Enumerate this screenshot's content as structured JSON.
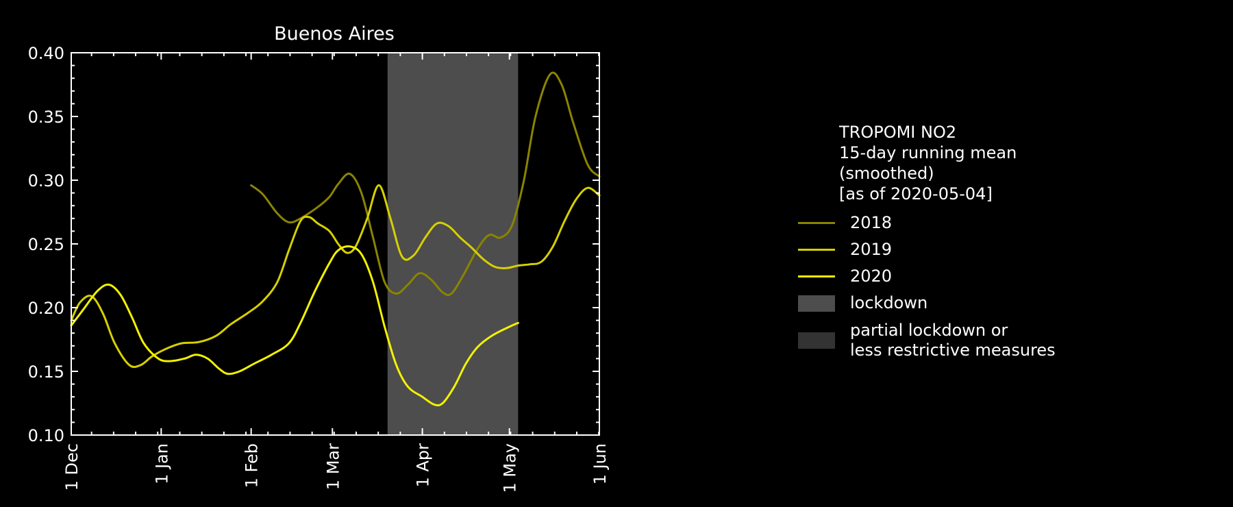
{
  "chart_data": {
    "type": "line",
    "title": "Buenos Aires",
    "xlabel": "",
    "ylabel": "",
    "ylim": [
      0.1,
      0.4
    ],
    "xlim": [
      "1 Dec",
      "1 Jun"
    ],
    "x_ticks": [
      "1 Dec",
      "1 Jan",
      "1 Feb",
      "1 Mar",
      "1 Apr",
      "1 May",
      "1 Jun"
    ],
    "y_ticks": [
      "0.10",
      "0.15",
      "0.20",
      "0.25",
      "0.30",
      "0.35",
      "0.40"
    ],
    "grid": false,
    "legend_position": "right",
    "legend_title": [
      "TROPOMI NO2",
      "15-day running mean",
      "(smoothed)",
      "[as of 2020-05-04]"
    ],
    "series": [
      {
        "name": "2018",
        "color": "#8a8400",
        "width": 3,
        "points": [
          [
            "1 Feb",
            0.296
          ],
          [
            "5 Feb",
            0.289
          ],
          [
            "10 Feb",
            0.274
          ],
          [
            "14 Feb",
            0.267
          ],
          [
            "18 Feb",
            0.27
          ],
          [
            "24 Feb",
            0.279
          ],
          [
            "28 Feb",
            0.287
          ],
          [
            "3 Mar",
            0.297
          ],
          [
            "7 Mar",
            0.305
          ],
          [
            "11 Mar",
            0.29
          ],
          [
            "15 Mar",
            0.255
          ],
          [
            "19 Mar",
            0.22
          ],
          [
            "23 Mar",
            0.211
          ],
          [
            "27 Mar",
            0.218
          ],
          [
            "31 Mar",
            0.227
          ],
          [
            "4 Apr",
            0.222
          ],
          [
            "8 Apr",
            0.212
          ],
          [
            "11 Apr",
            0.211
          ],
          [
            "15 Apr",
            0.225
          ],
          [
            "20 Apr",
            0.246
          ],
          [
            "24 Apr",
            0.257
          ],
          [
            "28 Apr",
            0.255
          ],
          [
            "2 May",
            0.265
          ],
          [
            "6 May",
            0.3
          ],
          [
            "10 May",
            0.35
          ],
          [
            "15 May",
            0.383
          ],
          [
            "19 May",
            0.375
          ],
          [
            "23 May",
            0.345
          ],
          [
            "28 May",
            0.312
          ],
          [
            "1 Jun",
            0.303
          ]
        ]
      },
      {
        "name": "2019",
        "color": "#d6d000",
        "width": 3,
        "points": [
          [
            "1 Dec",
            0.19
          ],
          [
            "4 Dec",
            0.204
          ],
          [
            "8 Dec",
            0.209
          ],
          [
            "12 Dec",
            0.195
          ],
          [
            "16 Dec",
            0.172
          ],
          [
            "21 Dec",
            0.155
          ],
          [
            "25 Dec",
            0.155
          ],
          [
            "29 Dec",
            0.162
          ],
          [
            "3 Jan",
            0.168
          ],
          [
            "8 Jan",
            0.172
          ],
          [
            "14 Jan",
            0.173
          ],
          [
            "20 Jan",
            0.178
          ],
          [
            "25 Jan",
            0.187
          ],
          [
            "31 Jan",
            0.196
          ],
          [
            "5 Feb",
            0.205
          ],
          [
            "10 Feb",
            0.22
          ],
          [
            "14 Feb",
            0.245
          ],
          [
            "18 Feb",
            0.268
          ],
          [
            "21 Feb",
            0.271
          ],
          [
            "24 Feb",
            0.266
          ],
          [
            "28 Feb",
            0.26
          ],
          [
            "3 Mar",
            0.25
          ],
          [
            "6 Mar",
            0.243
          ],
          [
            "9 Mar",
            0.248
          ],
          [
            "13 Mar",
            0.27
          ],
          [
            "17 Mar",
            0.296
          ],
          [
            "21 Mar",
            0.27
          ],
          [
            "25 Mar",
            0.24
          ],
          [
            "29 Mar",
            0.241
          ],
          [
            "2 Apr",
            0.255
          ],
          [
            "6 Apr",
            0.266
          ],
          [
            "10 Apr",
            0.264
          ],
          [
            "14 Apr",
            0.255
          ],
          [
            "18 Apr",
            0.247
          ],
          [
            "22 Apr",
            0.238
          ],
          [
            "26 Apr",
            0.232
          ],
          [
            "30 Apr",
            0.231
          ],
          [
            "4 May",
            0.233
          ],
          [
            "8 May",
            0.234
          ],
          [
            "12 May",
            0.236
          ],
          [
            "16 May",
            0.248
          ],
          [
            "20 May",
            0.268
          ],
          [
            "24 May",
            0.285
          ],
          [
            "28 May",
            0.294
          ],
          [
            "1 Jun",
            0.288
          ]
        ]
      },
      {
        "name": "2020",
        "color": "#f2f200",
        "width": 3,
        "points": [
          [
            "1 Dec",
            0.186
          ],
          [
            "5 Dec",
            0.198
          ],
          [
            "10 Dec",
            0.213
          ],
          [
            "14 Dec",
            0.218
          ],
          [
            "18 Dec",
            0.21
          ],
          [
            "22 Dec",
            0.192
          ],
          [
            "26 Dec",
            0.172
          ],
          [
            "31 Dec",
            0.16
          ],
          [
            "4 Jan",
            0.158
          ],
          [
            "9 Jan",
            0.16
          ],
          [
            "13 Jan",
            0.163
          ],
          [
            "17 Jan",
            0.16
          ],
          [
            "21 Jan",
            0.152
          ],
          [
            "24 Jan",
            0.148
          ],
          [
            "28 Jan",
            0.15
          ],
          [
            "2 Feb",
            0.156
          ],
          [
            "8 Feb",
            0.163
          ],
          [
            "14 Feb",
            0.172
          ],
          [
            "18 Feb",
            0.188
          ],
          [
            "23 Feb",
            0.213
          ],
          [
            "28 Feb",
            0.235
          ],
          [
            "3 Mar",
            0.245
          ],
          [
            "7 Mar",
            0.248
          ],
          [
            "11 Mar",
            0.242
          ],
          [
            "15 Mar",
            0.22
          ],
          [
            "19 Mar",
            0.185
          ],
          [
            "23 Mar",
            0.155
          ],
          [
            "27 Mar",
            0.138
          ],
          [
            "1 Apr",
            0.13
          ],
          [
            "5 Apr",
            0.124
          ],
          [
            "8 Apr",
            0.125
          ],
          [
            "12 Apr",
            0.138
          ],
          [
            "16 Apr",
            0.156
          ],
          [
            "20 Apr",
            0.169
          ],
          [
            "25 Apr",
            0.178
          ],
          [
            "1 May",
            0.185
          ],
          [
            "4 May",
            0.188
          ]
        ]
      }
    ],
    "shaded_regions": [
      {
        "name": "lockdown",
        "color": "#4d4d4d",
        "start": "20 Mar",
        "end": "4 May"
      }
    ]
  },
  "legend": {
    "title_lines": [
      "TROPOMI NO2",
      "15-day running mean",
      "(smoothed)",
      "[as of 2020-05-04]"
    ],
    "items": [
      {
        "label": "2018",
        "kind": "line",
        "color": "#8a8400"
      },
      {
        "label": "2019",
        "kind": "line",
        "color": "#d6d000"
      },
      {
        "label": "2020",
        "kind": "line",
        "color": "#f2f200"
      },
      {
        "label": "lockdown",
        "kind": "box",
        "color": "#4d4d4d"
      },
      {
        "label_lines": [
          "partial lockdown or",
          "less restrictive measures"
        ],
        "kind": "box",
        "color": "#333333"
      }
    ]
  }
}
